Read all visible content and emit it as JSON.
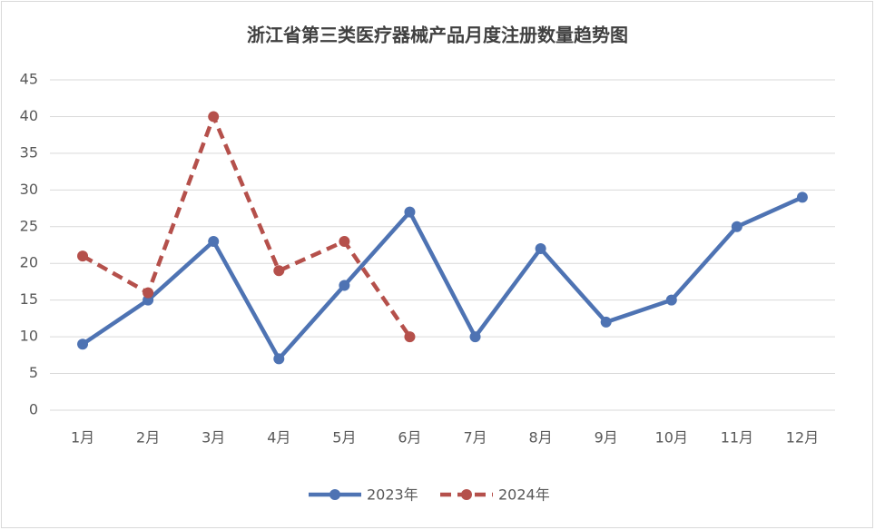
{
  "chart_data": {
    "type": "line",
    "title": "浙江省第三类医疗器械产品月度注册数量趋势图",
    "categories": [
      "1月",
      "2月",
      "3月",
      "4月",
      "5月",
      "6月",
      "7月",
      "8月",
      "9月",
      "10月",
      "11月",
      "12月"
    ],
    "series": [
      {
        "name": "2023年",
        "color": "#4e73b3",
        "dash": false,
        "values": [
          9,
          15,
          23,
          7,
          17,
          27,
          10,
          22,
          12,
          15,
          25,
          29
        ]
      },
      {
        "name": "2024年",
        "color": "#b5504b",
        "dash": true,
        "values": [
          21,
          16,
          40,
          19,
          23,
          10,
          null,
          null,
          null,
          null,
          null,
          null
        ]
      }
    ],
    "ylim": [
      0,
      45
    ],
    "yticks": [
      0,
      5,
      10,
      15,
      20,
      25,
      30,
      35,
      40,
      45
    ],
    "grid": true,
    "legend": "bottom"
  }
}
